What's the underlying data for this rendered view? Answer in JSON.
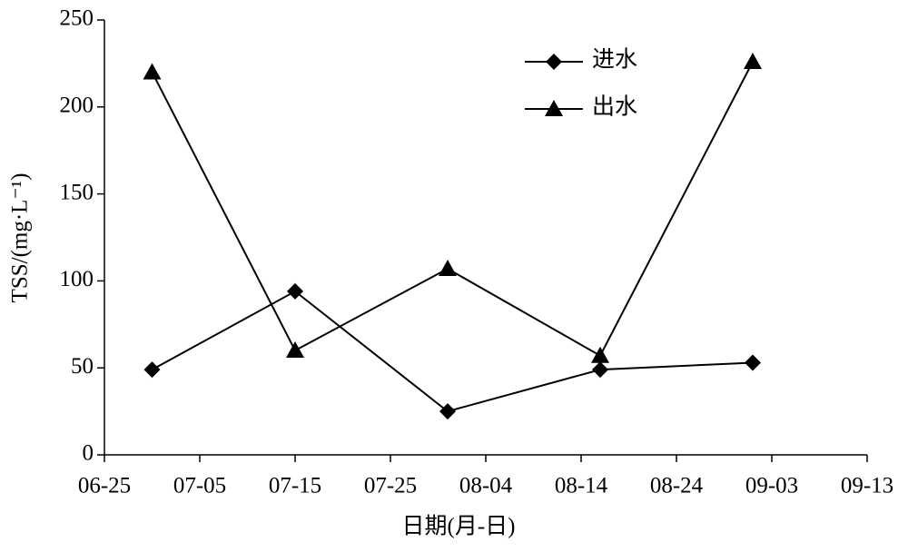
{
  "chart_data": {
    "type": "line",
    "x_label": "日期(月-日)",
    "y_label": "TSS/(mg·L⁻¹)",
    "x": [
      "06-30",
      "07-15",
      "07-31",
      "08-16",
      "09-01"
    ],
    "xlim": [
      "06-25",
      "09-13"
    ],
    "xticks": [
      "06-25",
      "07-05",
      "07-15",
      "07-25",
      "08-04",
      "08-14",
      "08-24",
      "09-03",
      "09-13"
    ],
    "ylim": [
      0,
      250
    ],
    "yticks": [
      0,
      50,
      100,
      150,
      200,
      250
    ],
    "legend": "upper right",
    "series": [
      {
        "name": "进水",
        "color": "#000000",
        "marker": "diamond",
        "values": [
          49,
          94,
          25,
          49,
          53
        ]
      },
      {
        "name": "出水",
        "color": "#000000",
        "marker": "triangle",
        "values": [
          220,
          60,
          107,
          57,
          226
        ]
      }
    ]
  }
}
